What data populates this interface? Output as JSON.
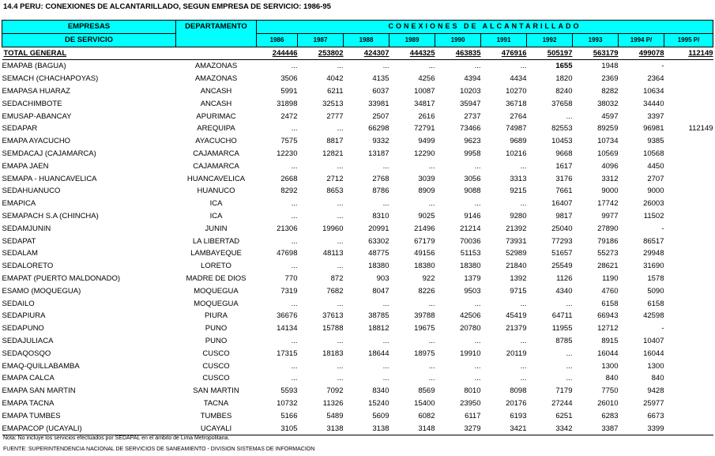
{
  "title": "14.4  PERU: CONEXIONES DE ALCANTARILLADO, SEGUN EMPRESA DE SERVICIO: 1986-95",
  "header": {
    "empresas_line1": "EMPRESAS",
    "empresas_line2": "DE SERVICIO",
    "departamento": "DEPARTAMENTO",
    "conexiones": "CONEXIONES DE ALCANTARILLADO",
    "years": [
      "1986",
      "1987",
      "1988",
      "1989",
      "1990",
      "1991",
      "1992",
      "1993",
      "1994 P/",
      "1995 P/"
    ]
  },
  "total": {
    "label": "TOTAL GENERAL",
    "values": [
      "244446",
      "253802",
      "424307",
      "444325",
      "463835",
      "476916",
      "505197",
      "563179",
      "499078",
      "112149"
    ]
  },
  "rows": [
    {
      "empresa": "EMAPAB (BAGUA)",
      "departamento": "AMAZONAS",
      "values": [
        "...",
        "...",
        "...",
        "...",
        "...",
        "...",
        "1655",
        "1948",
        "-",
        ""
      ]
    },
    {
      "empresa": "SEMACH (CHACHAPOYAS)",
      "departamento": "AMAZONAS",
      "values": [
        "3506",
        "4042",
        "4135",
        "4256",
        "4394",
        "4434",
        "1820",
        "2369",
        "2364",
        ""
      ]
    },
    {
      "empresa": "EMAPASA HUARAZ",
      "departamento": "ANCASH",
      "values": [
        "5991",
        "6211",
        "6037",
        "10087",
        "10203",
        "10270",
        "8240",
        "8282",
        "10634",
        ""
      ]
    },
    {
      "empresa": "SEDACHIMBOTE",
      "departamento": "ANCASH",
      "values": [
        "31898",
        "32513",
        "33981",
        "34817",
        "35947",
        "36718",
        "37658",
        "38032",
        "34440",
        ""
      ]
    },
    {
      "empresa": "EMUSAP-ABANCAY",
      "departamento": "APURIMAC",
      "values": [
        "2472",
        "2777",
        "2507",
        "2616",
        "2737",
        "2764",
        "...",
        "4597",
        "3397",
        ""
      ]
    },
    {
      "empresa": "SEDAPAR",
      "departamento": "AREQUIPA",
      "values": [
        "...",
        "...",
        "66298",
        "72791",
        "73466",
        "74987",
        "82553",
        "89259",
        "96981",
        "112149"
      ]
    },
    {
      "empresa": "EMAPA AYACUCHO",
      "departamento": "AYACUCHO",
      "values": [
        "7575",
        "8817",
        "9332",
        "9499",
        "9623",
        "9689",
        "10453",
        "10734",
        "9385",
        ""
      ]
    },
    {
      "empresa": "SEMDACAJ (CAJAMARCA)",
      "departamento": "CAJAMARCA",
      "values": [
        "12230",
        "12821",
        "13187",
        "12290",
        "9958",
        "10216",
        "9668",
        "10569",
        "10568",
        ""
      ]
    },
    {
      "empresa": "EMAPA JAEN",
      "departamento": "CAJAMARCA",
      "values": [
        "...",
        "...",
        "...",
        "...",
        "...",
        "...",
        "1617",
        "4096",
        "4450",
        ""
      ]
    },
    {
      "empresa": "SEMAPA - HUANCAVELICA",
      "departamento": "HUANCAVELICA",
      "values": [
        "2668",
        "2712",
        "2768",
        "3039",
        "3056",
        "3313",
        "3176",
        "3312",
        "2707",
        ""
      ]
    },
    {
      "empresa": "SEDAHUANUCO",
      "departamento": "HUANUCO",
      "values": [
        "8292",
        "8653",
        "8786",
        "8909",
        "9088",
        "9215",
        "7661",
        "9000",
        "9000",
        ""
      ]
    },
    {
      "empresa": "EMAPICA",
      "departamento": "ICA",
      "values": [
        "...",
        "...",
        "...",
        "...",
        "...",
        "...",
        "16407",
        "17742",
        "26003",
        ""
      ]
    },
    {
      "empresa": "SEMAPACH S.A (CHINCHA)",
      "departamento": "ICA",
      "values": [
        "...",
        "...",
        "8310",
        "9025",
        "9146",
        "9280",
        "9817",
        "9977",
        "11502",
        ""
      ]
    },
    {
      "empresa": "SEDAMJUNIN",
      "departamento": "JUNIN",
      "values": [
        "21306",
        "19960",
        "20991",
        "21496",
        "21214",
        "21392",
        "25040",
        "27890",
        "-",
        ""
      ]
    },
    {
      "empresa": "SEDAPAT",
      "departamento": "LA LIBERTAD",
      "values": [
        "...",
        "...",
        "63302",
        "67179",
        "70036",
        "73931",
        "77293",
        "79186",
        "86517",
        ""
      ]
    },
    {
      "empresa": "SEDALAM",
      "departamento": "LAMBAYEQUE",
      "values": [
        "47698",
        "48113",
        "48775",
        "49156",
        "51153",
        "52989",
        "51657",
        "55273",
        "29948",
        ""
      ]
    },
    {
      "empresa": "SEDALORETO",
      "departamento": "LORETO",
      "values": [
        "...",
        "...",
        "18380",
        "18380",
        "18380",
        "21840",
        "25549",
        "28621",
        "31690",
        ""
      ]
    },
    {
      "empresa": "EMAPAT (PUERTO MALDONADO)",
      "departamento": "MADRE DE DIOS",
      "values": [
        "770",
        "872",
        "903",
        "922",
        "1379",
        "1392",
        "1126",
        "1190",
        "1578",
        ""
      ]
    },
    {
      "empresa": "ESAMO (MOQUEGUA)",
      "departamento": "MOQUEGUA",
      "values": [
        "7319",
        "7682",
        "8047",
        "8226",
        "9503",
        "9715",
        "4340",
        "4760",
        "5090",
        ""
      ]
    },
    {
      "empresa": "SEDAILO",
      "departamento": "MOQUEGUA",
      "values": [
        "...",
        "...",
        "...",
        "...",
        "...",
        "...",
        "...",
        "6158",
        "6158",
        ""
      ]
    },
    {
      "empresa": "SEDAPIURA",
      "departamento": "PIURA",
      "values": [
        "36676",
        "37613",
        "38785",
        "39788",
        "42506",
        "45419",
        "64711",
        "66943",
        "42598",
        ""
      ]
    },
    {
      "empresa": "SEDAPUNO",
      "departamento": "PUNO",
      "values": [
        "14134",
        "15788",
        "18812",
        "19675",
        "20780",
        "21379",
        "11955",
        "12712",
        "-",
        ""
      ]
    },
    {
      "empresa": "SEDAJULIACA",
      "departamento": "PUNO",
      "values": [
        "...",
        "...",
        "...",
        "...",
        "...",
        "...",
        "8785",
        "8915",
        "10407",
        ""
      ]
    },
    {
      "empresa": "SEDAQOSQO",
      "departamento": "CUSCO",
      "values": [
        "17315",
        "18183",
        "18644",
        "18975",
        "19910",
        "20119",
        "...",
        "16044",
        "16044",
        ""
      ]
    },
    {
      "empresa": "EMAQ-QUILLABAMBA",
      "departamento": "CUSCO",
      "values": [
        "...",
        "...",
        "...",
        "...",
        "...",
        "...",
        "...",
        "1300",
        "1300",
        ""
      ]
    },
    {
      "empresa": "EMAPA CALCA",
      "departamento": "CUSCO",
      "values": [
        "...",
        "...",
        "...",
        "...",
        "...",
        "...",
        "...",
        "840",
        "840",
        ""
      ]
    },
    {
      "empresa": "EMAPA SAN MARTIN",
      "departamento": "SAN MARTIN",
      "values": [
        "5593",
        "7092",
        "8340",
        "8569",
        "8010",
        "8098",
        "7179",
        "7750",
        "9428",
        ""
      ]
    },
    {
      "empresa": "EMAPA TACNA",
      "departamento": "TACNA",
      "values": [
        "10732",
        "11326",
        "15240",
        "15400",
        "23950",
        "20176",
        "27244",
        "26010",
        "25977",
        ""
      ]
    },
    {
      "empresa": "EMAPA TUMBES",
      "departamento": "TUMBES",
      "values": [
        "5166",
        "5489",
        "5609",
        "6082",
        "6117",
        "6193",
        "6251",
        "6283",
        "6673",
        ""
      ]
    },
    {
      "empresa": "EMAPACOP (UCAYALI)",
      "departamento": "UCAYALI",
      "values": [
        "3105",
        "3138",
        "3138",
        "3148",
        "3279",
        "3421",
        "3342",
        "3387",
        "3399",
        ""
      ]
    }
  ],
  "note": "Nota: No incluye los servicios efectuados por SEDAPAL en el ámbito de Lima Metropolitana.",
  "source": "FUENTE: SUPERINTENDENCIA NACIONAL DE SERVICIOS DE SANEAMIENTO -  DIVISION SISTEMAS DE INFORMACION"
}
